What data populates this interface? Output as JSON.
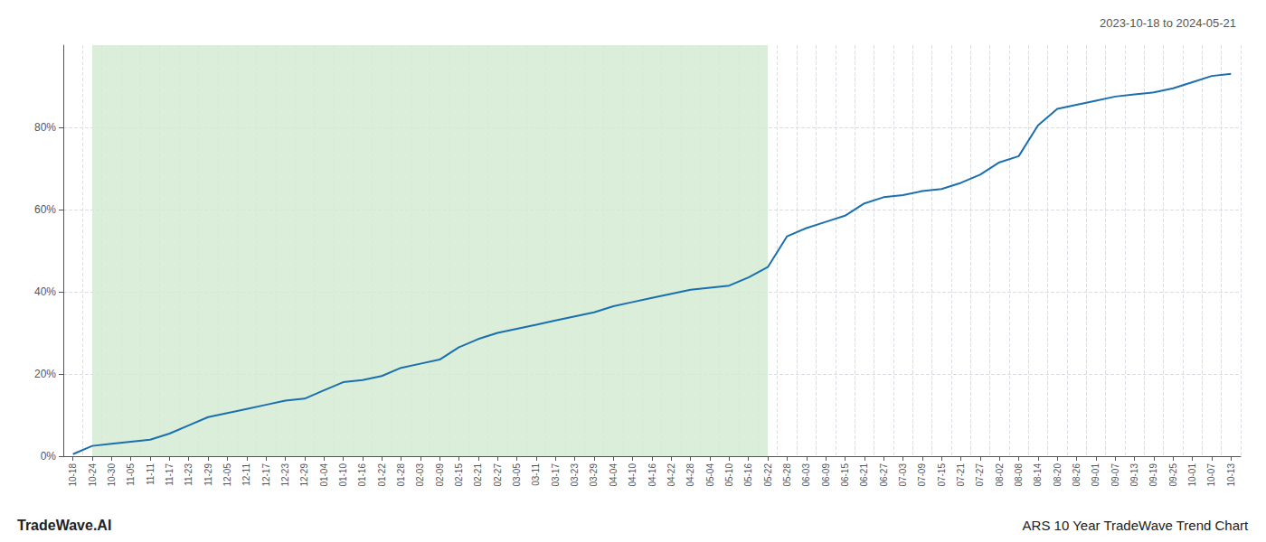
{
  "chart_data": {
    "type": "line",
    "title": "ARS 10 Year TradeWave Trend Chart",
    "subtitle": "2023-10-18 to 2024-05-21",
    "annotations": [
      "TradeWave.AI"
    ],
    "categories": [
      "10-18",
      "10-24",
      "10-30",
      "11-05",
      "11-11",
      "11-17",
      "11-23",
      "11-29",
      "12-05",
      "12-11",
      "12-17",
      "12-23",
      "12-29",
      "01-04",
      "01-10",
      "01-16",
      "01-22",
      "01-28",
      "02-03",
      "02-09",
      "02-15",
      "02-21",
      "02-27",
      "03-05",
      "03-11",
      "03-17",
      "03-23",
      "03-29",
      "04-04",
      "04-10",
      "04-16",
      "04-22",
      "04-28",
      "05-04",
      "05-10",
      "05-16",
      "05-22",
      "05-28",
      "06-03",
      "06-09",
      "06-15",
      "06-21",
      "06-27",
      "07-03",
      "07-09",
      "07-15",
      "07-21",
      "07-27",
      "08-02",
      "08-08",
      "08-14",
      "08-20",
      "08-26",
      "09-01",
      "09-07",
      "09-13",
      "09-19",
      "09-25",
      "10-01",
      "10-07",
      "10-13"
    ],
    "values": [
      0.5,
      2.5,
      3.0,
      3.5,
      4.0,
      5.5,
      7.5,
      9.5,
      10.5,
      11.5,
      12.5,
      13.5,
      14.0,
      16.0,
      18.0,
      18.5,
      19.5,
      21.5,
      22.5,
      23.5,
      26.5,
      28.5,
      30.0,
      31.0,
      32.0,
      33.0,
      34.0,
      35.0,
      36.5,
      37.5,
      38.5,
      39.5,
      40.5,
      41.0,
      41.5,
      43.5,
      46.0,
      53.5,
      55.5,
      57.0,
      58.5,
      61.5,
      63.0,
      63.5,
      64.5,
      65.0,
      66.5,
      68.5,
      71.5,
      73.0,
      80.5,
      84.5,
      85.5,
      86.5,
      87.5,
      88.0,
      88.5,
      89.5,
      91.0,
      92.5,
      93.0
    ],
    "color": "#1a6faf",
    "shaded_region": {
      "start": "10-24",
      "end": "05-22",
      "color": "#d4ebd4"
    },
    "ylim": [
      0,
      100
    ],
    "yticks": [
      {
        "value": 0,
        "label": "0%"
      },
      {
        "value": 20,
        "label": "20%"
      },
      {
        "value": 40,
        "label": "40%"
      },
      {
        "value": 60,
        "label": "60%"
      },
      {
        "value": 80,
        "label": "80%"
      }
    ],
    "grid": true
  }
}
